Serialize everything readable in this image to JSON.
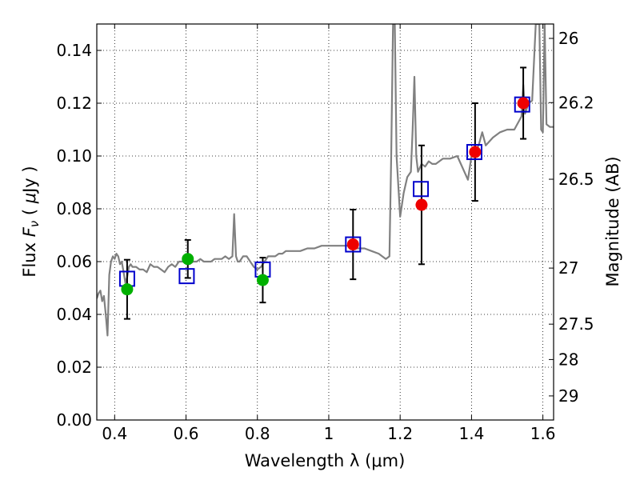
{
  "chart_data": {
    "type": "scatter",
    "title": "",
    "xlabel": "Wavelength  λ (μm)",
    "ylabel": "Flux  Fν  ( μJy )",
    "y2label": "Magnitude (AB)",
    "xlim": [
      0.35,
      1.63
    ],
    "ylim": [
      0.0,
      0.15
    ],
    "grid": true,
    "x_ticks": [
      0.4,
      0.6,
      0.8,
      1.0,
      1.2,
      1.4,
      1.6
    ],
    "x_tick_labels": [
      "0.4",
      "0.6",
      "0.8",
      "1",
      "1.2",
      "1.4",
      "1.6"
    ],
    "y_ticks": [
      0.0,
      0.02,
      0.04,
      0.06,
      0.08,
      0.1,
      0.12,
      0.14
    ],
    "y_tick_labels": [
      "0.00",
      "0.02",
      "0.04",
      "0.06",
      "0.08",
      "0.10",
      "0.12",
      "0.14"
    ],
    "y2_ticks": [
      26,
      26.2,
      26.5,
      27,
      27.5,
      28,
      29
    ],
    "y2_tick_labels": [
      "26",
      "26.2",
      "26.5",
      "27",
      "27.5",
      "28",
      "29"
    ],
    "colors": {
      "spectrum": "#808080",
      "model": "#0000cc",
      "optical": "#00b000",
      "infrared": "#ee0000",
      "errorbar": "#000000",
      "grid": "#000000"
    },
    "series": [
      {
        "name": "model spectrum",
        "kind": "line",
        "x": [
          0.35,
          0.355,
          0.36,
          0.365,
          0.37,
          0.375,
          0.38,
          0.385,
          0.39,
          0.395,
          0.4,
          0.405,
          0.41,
          0.415,
          0.42,
          0.425,
          0.43,
          0.435,
          0.44,
          0.445,
          0.45,
          0.46,
          0.47,
          0.48,
          0.49,
          0.5,
          0.51,
          0.52,
          0.53,
          0.54,
          0.55,
          0.56,
          0.57,
          0.58,
          0.59,
          0.6,
          0.61,
          0.62,
          0.63,
          0.64,
          0.65,
          0.66,
          0.67,
          0.68,
          0.69,
          0.7,
          0.71,
          0.72,
          0.73,
          0.735,
          0.74,
          0.745,
          0.75,
          0.76,
          0.77,
          0.78,
          0.79,
          0.8,
          0.81,
          0.82,
          0.83,
          0.84,
          0.85,
          0.86,
          0.87,
          0.88,
          0.89,
          0.9,
          0.92,
          0.94,
          0.96,
          0.98,
          1.0,
          1.02,
          1.04,
          1.06,
          1.08,
          1.1,
          1.12,
          1.14,
          1.16,
          1.17,
          1.175,
          1.18,
          1.185,
          1.19,
          1.2,
          1.21,
          1.22,
          1.23,
          1.235,
          1.24,
          1.245,
          1.25,
          1.26,
          1.27,
          1.28,
          1.29,
          1.3,
          1.32,
          1.34,
          1.36,
          1.38,
          1.39,
          1.4,
          1.41,
          1.42,
          1.43,
          1.44,
          1.46,
          1.48,
          1.5,
          1.52,
          1.54,
          1.545,
          1.55,
          1.555,
          1.56,
          1.57,
          1.58,
          1.585,
          1.59,
          1.595,
          1.6,
          1.605,
          1.61,
          1.62,
          1.63
        ],
        "y": [
          0.046,
          0.048,
          0.049,
          0.045,
          0.047,
          0.04,
          0.032,
          0.055,
          0.06,
          0.062,
          0.061,
          0.063,
          0.062,
          0.059,
          0.06,
          0.056,
          0.052,
          0.054,
          0.058,
          0.059,
          0.058,
          0.058,
          0.057,
          0.057,
          0.056,
          0.059,
          0.058,
          0.058,
          0.057,
          0.056,
          0.058,
          0.059,
          0.058,
          0.06,
          0.06,
          0.06,
          0.059,
          0.06,
          0.06,
          0.061,
          0.06,
          0.06,
          0.06,
          0.061,
          0.061,
          0.061,
          0.062,
          0.061,
          0.062,
          0.078,
          0.062,
          0.06,
          0.06,
          0.062,
          0.062,
          0.06,
          0.058,
          0.057,
          0.058,
          0.06,
          0.062,
          0.062,
          0.062,
          0.063,
          0.063,
          0.064,
          0.064,
          0.064,
          0.064,
          0.065,
          0.065,
          0.066,
          0.066,
          0.066,
          0.066,
          0.066,
          0.065,
          0.065,
          0.064,
          0.063,
          0.061,
          0.062,
          0.1,
          0.15,
          0.15,
          0.1,
          0.077,
          0.086,
          0.092,
          0.094,
          0.11,
          0.13,
          0.1,
          0.094,
          0.097,
          0.096,
          0.098,
          0.097,
          0.097,
          0.099,
          0.099,
          0.1,
          0.094,
          0.091,
          0.1,
          0.102,
          0.104,
          0.109,
          0.104,
          0.107,
          0.109,
          0.11,
          0.11,
          0.115,
          0.127,
          0.116,
          0.118,
          0.12,
          0.121,
          0.15,
          0.15,
          0.15,
          0.11,
          0.109,
          0.15,
          0.112,
          0.111,
          0.111
        ]
      },
      {
        "name": "model photometry",
        "kind": "square",
        "x": [
          0.435,
          0.602,
          0.815,
          1.068,
          1.258,
          1.408,
          1.542
        ],
        "y": [
          0.0535,
          0.0545,
          0.057,
          0.0665,
          0.0875,
          0.1015,
          0.1195
        ]
      },
      {
        "name": "optical photometry",
        "kind": "circle",
        "x": [
          0.435,
          0.605,
          0.815
        ],
        "y": [
          0.0495,
          0.061,
          0.053
        ],
        "yerr": [
          0.0112,
          0.0072,
          0.0085
        ]
      },
      {
        "name": "near-infrared photometry",
        "kind": "circle",
        "x": [
          1.068,
          1.26,
          1.41,
          1.545
        ],
        "y": [
          0.0665,
          0.0815,
          0.1015,
          0.12
        ],
        "yerr": [
          0.0132,
          0.0225,
          0.0185,
          0.0135
        ]
      }
    ]
  }
}
